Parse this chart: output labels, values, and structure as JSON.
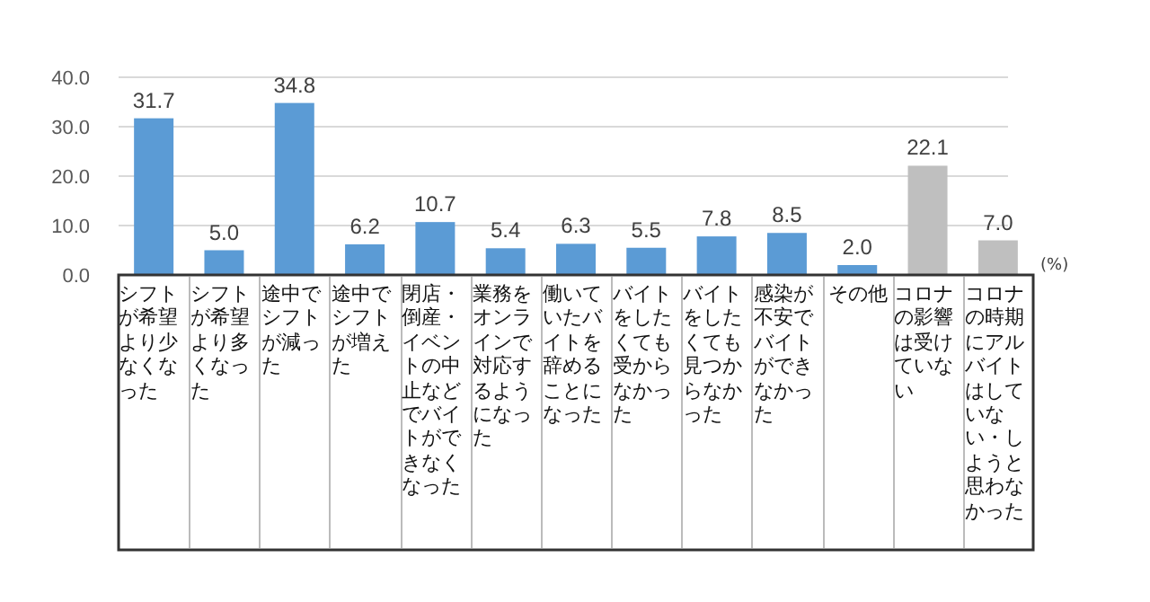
{
  "chart_data": {
    "type": "bar",
    "ylabel": "(%)",
    "categories": [
      "シフトが希望より少なくなった",
      "シフトが希望より多くなった",
      "途中でシフトが減った",
      "途中でシフトが増えた",
      "閉店・倒産・イベントの中止などでバイトができなくなった",
      "業務をオンラインで対応するようになった",
      "働いていたバイトを辞めることになった",
      "バイトをしたくても受からなかった",
      "バイトをしたくても見つからなかった",
      "感染が不安でバイトができなかった",
      "その他",
      "コロナの影響は受けていない",
      "コロナの時期にアルバイトはしていない・しようと思わなかった"
    ],
    "values": [
      31.7,
      5.0,
      34.8,
      6.2,
      10.7,
      5.4,
      6.3,
      5.5,
      7.8,
      8.5,
      2.0,
      22.1,
      7.0
    ],
    "value_labels": [
      "31.7",
      "5.0",
      "34.8",
      "6.2",
      "10.7",
      "5.4",
      "6.3",
      "5.5",
      "7.8",
      "8.5",
      "2.0",
      "22.1",
      "7.0"
    ],
    "colors": [
      "#5b9bd5",
      "#5b9bd5",
      "#5b9bd5",
      "#5b9bd5",
      "#5b9bd5",
      "#5b9bd5",
      "#5b9bd5",
      "#5b9bd5",
      "#5b9bd5",
      "#5b9bd5",
      "#5b9bd5",
      "#bfbfbf",
      "#bfbfbf"
    ],
    "ylim": [
      0,
      40
    ],
    "yticks": [
      {
        "value": 0,
        "label": "0.0"
      },
      {
        "value": 10,
        "label": "10.0"
      },
      {
        "value": 20,
        "label": "20.0"
      },
      {
        "value": 30,
        "label": "30.0"
      },
      {
        "value": 40,
        "label": "40.0"
      }
    ],
    "grid": "y"
  }
}
